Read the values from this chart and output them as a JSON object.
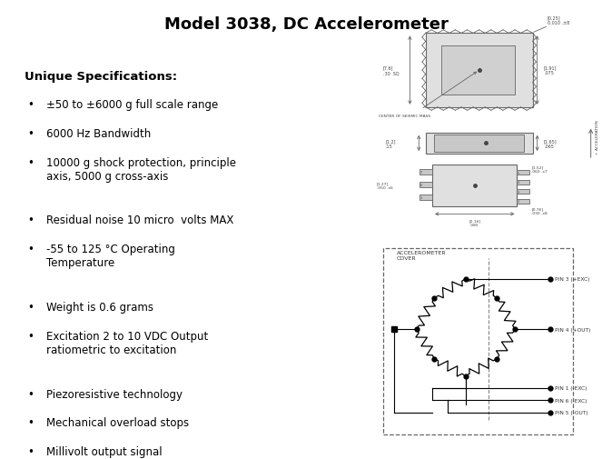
{
  "title": "Model 3038, DC Accelerometer",
  "title_fontsize": 13,
  "background_color": "#ffffff",
  "text_color": "#000000",
  "header": "Unique Specifications:",
  "bullets": [
    "±50 to ±6000 g full scale range",
    "6000 Hz Bandwidth",
    "10000 g shock protection, principle\naxis, 5000 g cross-axis",
    "Residual noise 10 micro  volts MAX",
    "-55 to 125 °C Operating\nTemperature",
    "Weight is 0.6 grams",
    "Excitation 2 to 10 VDC Output\nratiometric to excitation",
    "Piezoresistive technology",
    "Mechanical overload stops",
    "Millivolt output signal"
  ],
  "font_family": "DejaVu Sans",
  "diag_color": "#666666",
  "diag_fill": "#e0e0e0",
  "diag_fill2": "#c8c8c8"
}
